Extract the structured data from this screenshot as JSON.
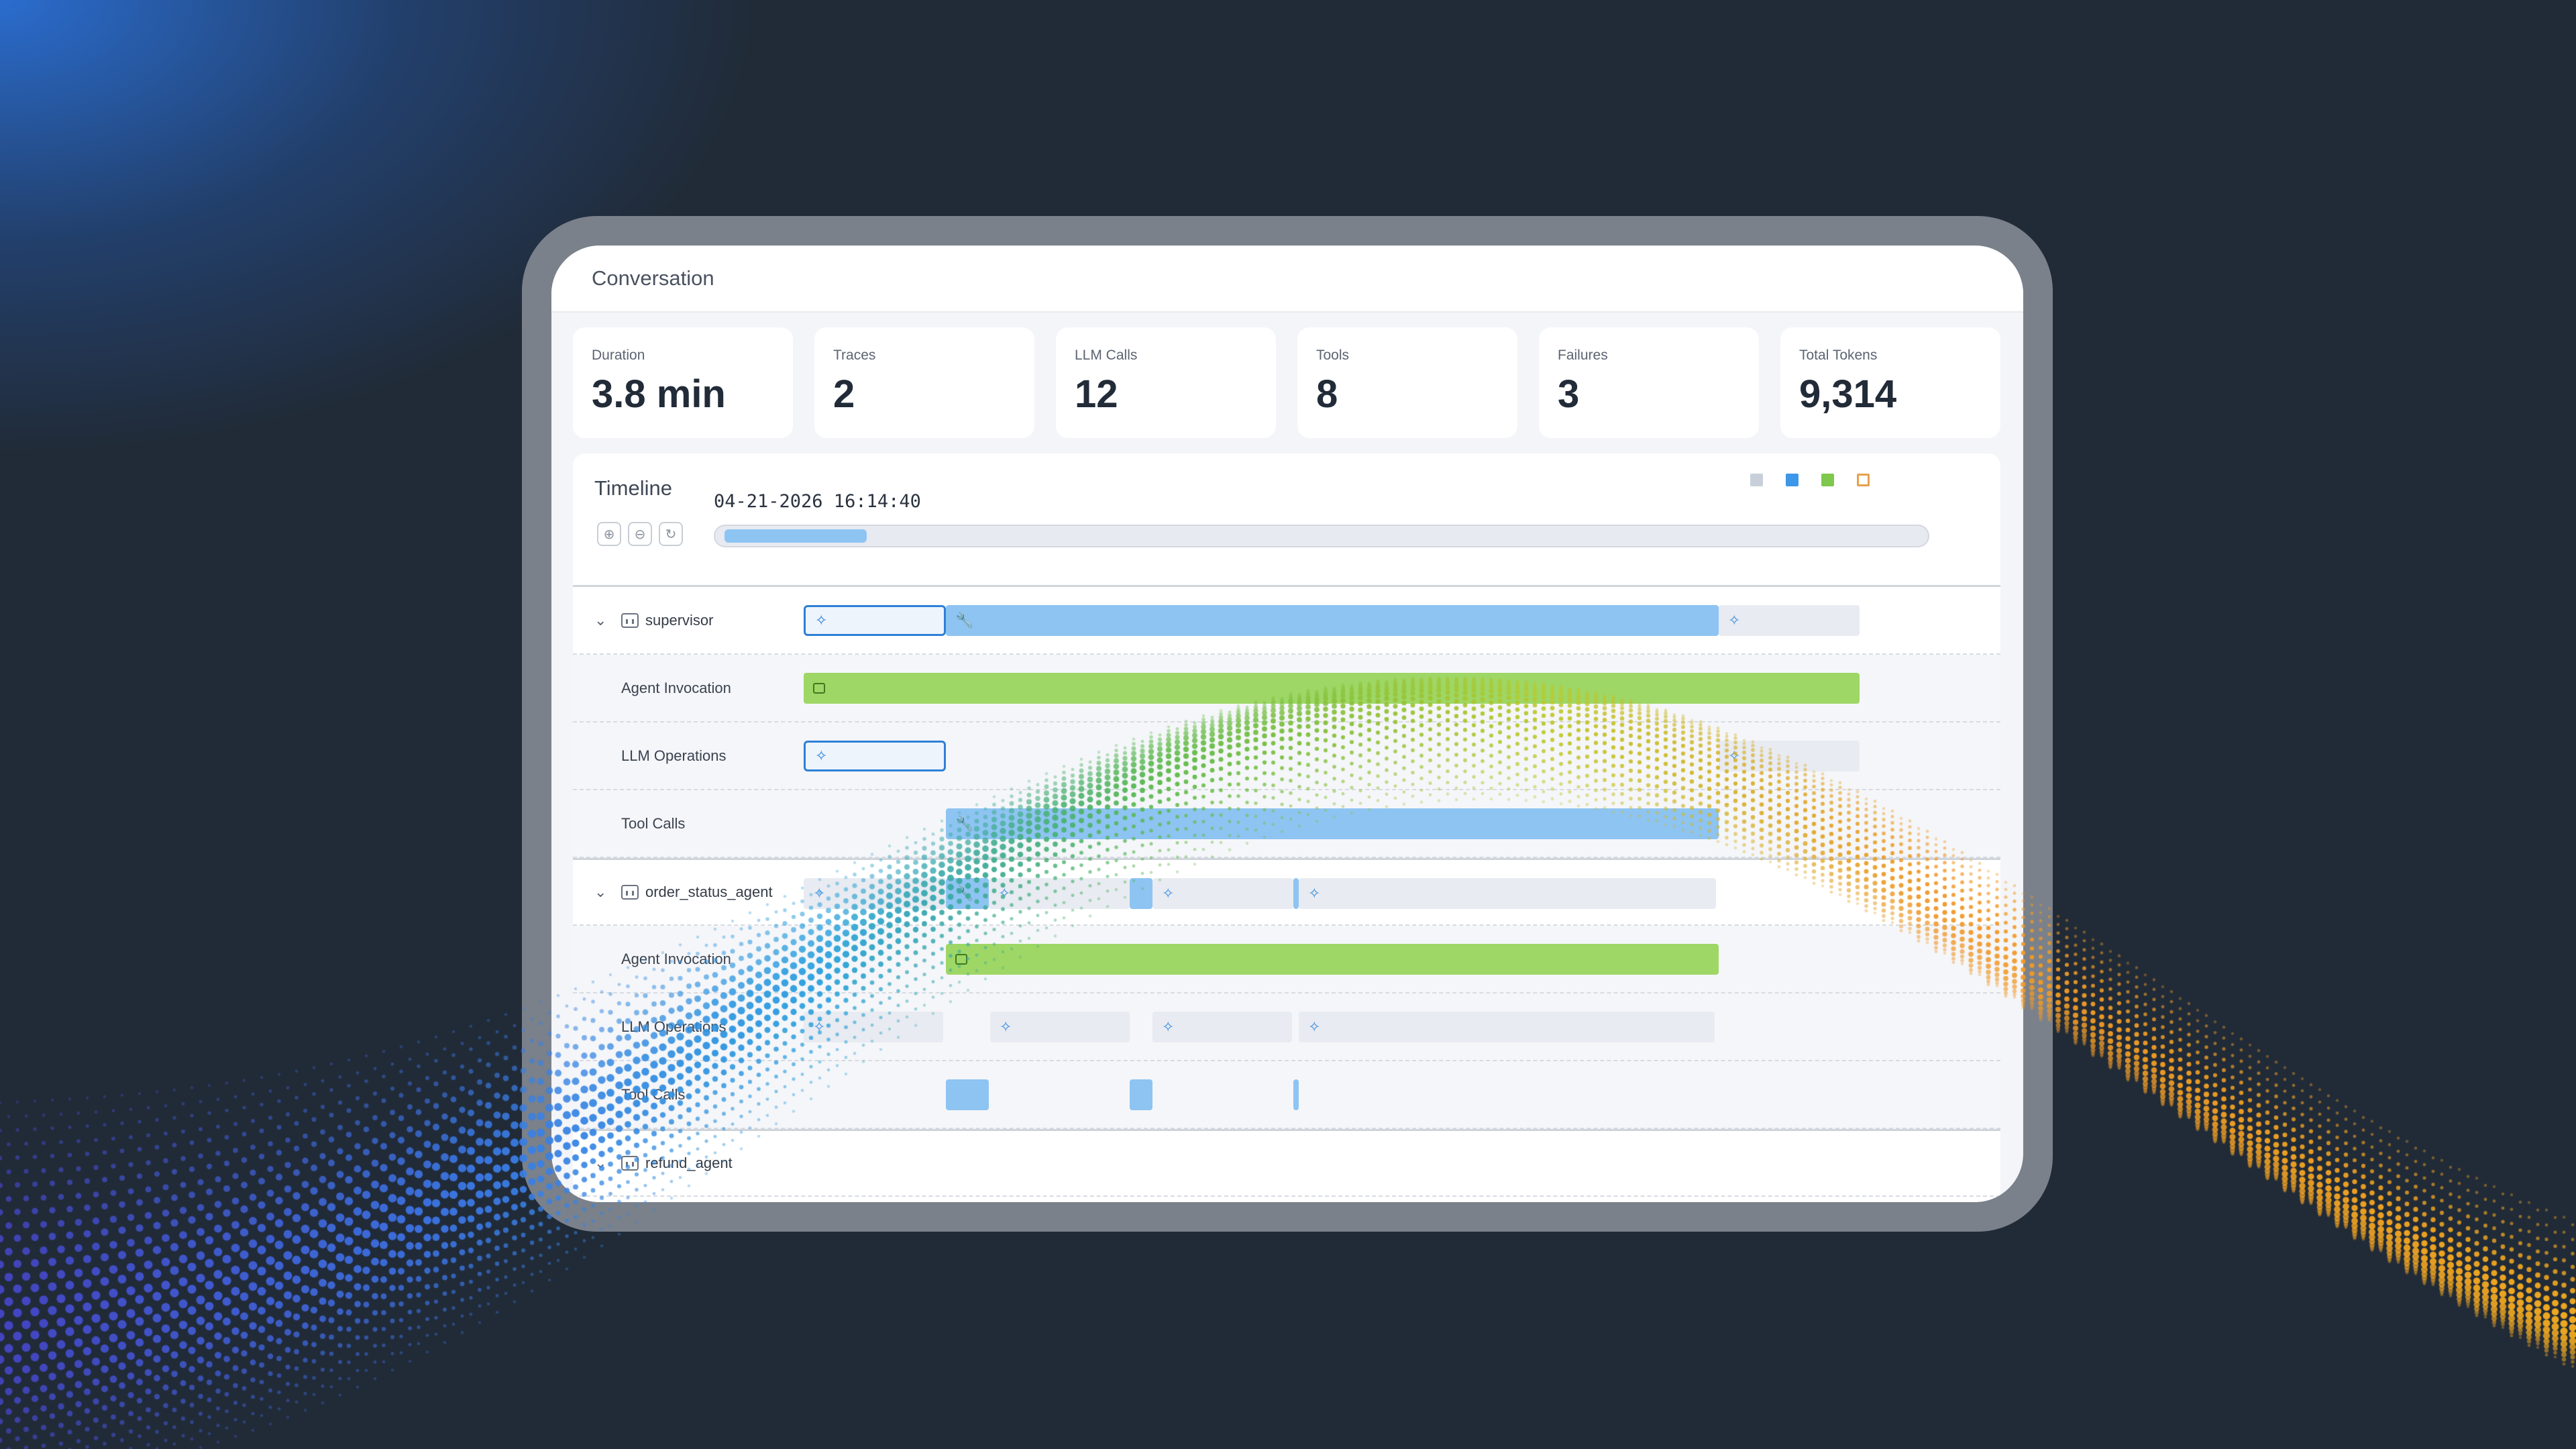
{
  "conversation": {
    "title": "Conversation"
  },
  "stats": [
    {
      "label": "Duration",
      "value": "3.8 min"
    },
    {
      "label": "Traces",
      "value": "2"
    },
    {
      "label": "LLM Calls",
      "value": "12"
    },
    {
      "label": "Tools",
      "value": "8"
    },
    {
      "label": "Failures",
      "value": "3"
    },
    {
      "label": "Total Tokens",
      "value": "9,314"
    }
  ],
  "timeline": {
    "title": "Timeline",
    "timestamp": "04-21-2026 16:14:40",
    "zoom_buttons": [
      "zoom-in-icon",
      "zoom-out-icon",
      "reset-icon"
    ],
    "legend_colors": [
      "#c7d0da",
      "#3c97e8",
      "#7ec84d",
      "#e5a24a"
    ],
    "scrub_position": 0.14
  },
  "groups": [
    {
      "name": "supervisor",
      "rows": [
        "Agent Invocation",
        "LLM Operations",
        "Tool Calls"
      ]
    },
    {
      "name": "order_status_agent",
      "rows": [
        "Agent Invocation",
        "LLM Operations",
        "Tool Calls"
      ]
    },
    {
      "name": "refund_agent",
      "rows": []
    }
  ],
  "icons": {
    "llm": "sparkle-icon",
    "tool": "wrench-icon",
    "agent": "agent-icon",
    "chevron": "chevron-down-icon"
  },
  "colors": {
    "background": "#212b38",
    "tool_bar": "#8ec4f2",
    "agent_bar": "#9ed765",
    "llm_bar": "#e8ebf1",
    "llm_selected": "#2e80d6"
  }
}
